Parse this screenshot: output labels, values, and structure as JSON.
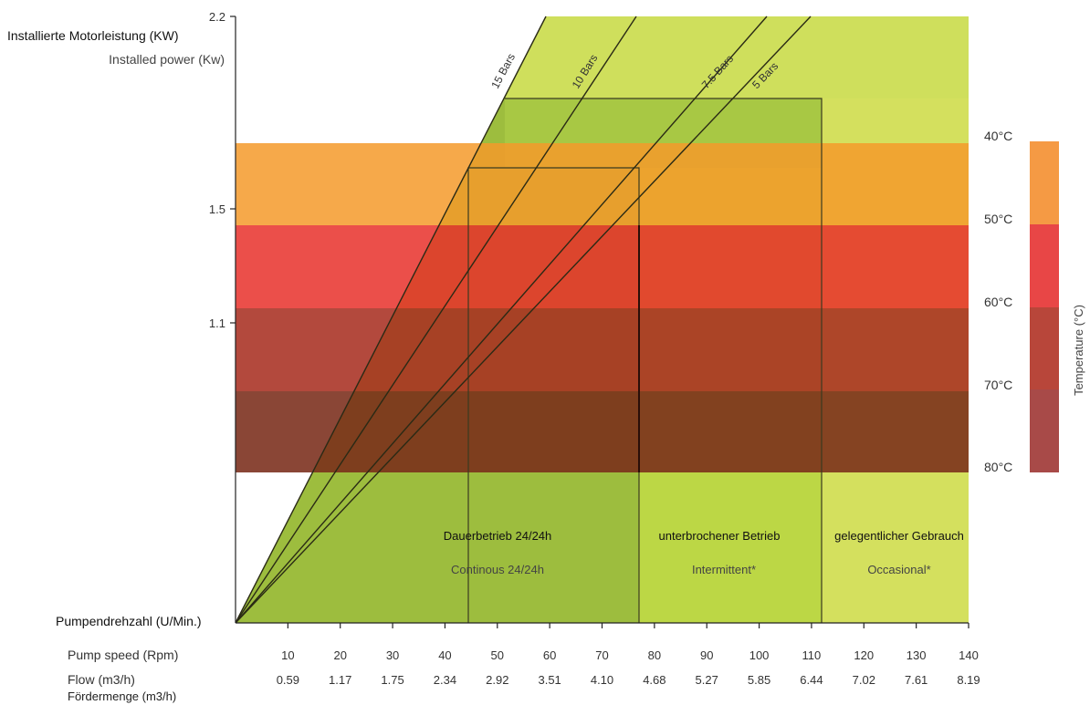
{
  "chart_data": {
    "type": "area",
    "title": "",
    "ylabel_de": "Installierte Motorleistung  (KW)",
    "ylabel_en": "Installed power (Kw)",
    "y_ticks": [
      "2.2",
      "1.5",
      "1.1"
    ],
    "x_row_label_de": "Pumpendrehzahl (U/Min.)",
    "pump_speed_label": "Pump speed (Rpm)",
    "flow_label": "Flow (m3/h)",
    "flow_label_de": "Fördermenge (m3/h)",
    "pump_speed_ticks": [
      "10",
      "20",
      "30",
      "40",
      "50",
      "60",
      "70",
      "80",
      "90",
      "100",
      "110",
      "120",
      "130",
      "140"
    ],
    "flow_ticks": [
      "0.59",
      "1.17",
      "1.75",
      "2.34",
      "2.92",
      "3.51",
      "4.10",
      "4.68",
      "5.27",
      "5.85",
      "6.44",
      "7.02",
      "7.61",
      "8.19"
    ],
    "x_range_rpm": [
      0,
      140
    ],
    "zones": [
      {
        "label_de": "Dauerbetrieb 24/24h",
        "label_en": "Continous 24/24h",
        "rpm_range": [
          0,
          77.5
        ],
        "color": "#9dbd3e"
      },
      {
        "label_de": "unterbrochener Betrieb",
        "label_en": "Intermittent*",
        "rpm_range": [
          77.5,
          111.5
        ],
        "color": "#bcd745"
      },
      {
        "label_de": "gelegentlicher Gebrauch",
        "label_en": "Occasional*",
        "rpm_range": [
          111.5,
          140
        ],
        "color": "#d4e05e"
      }
    ],
    "pressure_lines": [
      {
        "name": "15 Bars",
        "rpm_at_top": 59
      },
      {
        "name": "10 Bars",
        "rpm_at_top": 75
      },
      {
        "name": "7.5 Bars",
        "rpm_at_top": 97
      },
      {
        "name": "5 Bars",
        "rpm_at_top": 108
      }
    ],
    "temperature_title": "Temperature (°C)",
    "temperature_labels": [
      "40°C",
      "50°C",
      "60°C",
      "70°C",
      "80°C"
    ],
    "temperature_bands": [
      {
        "range": "40-50",
        "color": "#f59a44"
      },
      {
        "range": "50-60",
        "color": "#e83c3c"
      },
      {
        "range": "60-70",
        "color": "#b83a32"
      },
      {
        "range": "70-80",
        "color": "#8e2f25"
      }
    ],
    "grid": false,
    "legend": "right"
  }
}
